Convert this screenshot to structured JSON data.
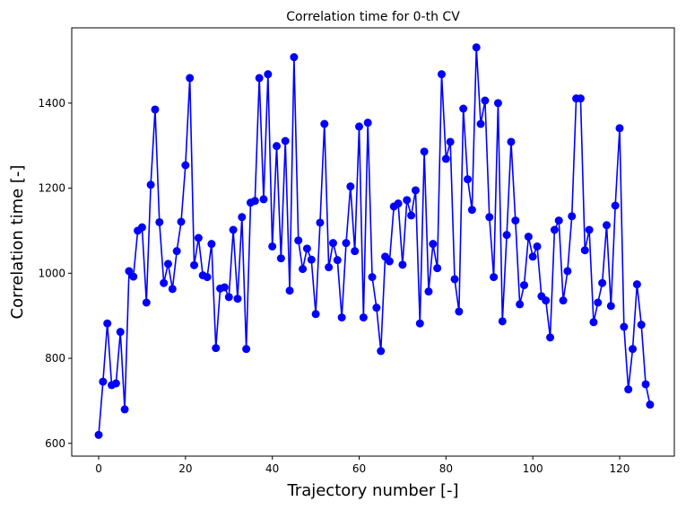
{
  "chart_data": {
    "type": "line",
    "title": "Correlation time for 0-th CV",
    "xlabel": "Trajectory number [-]",
    "ylabel": "Correlation time [-]",
    "xlim": [
      -6.2,
      132.6
    ],
    "ylim": [
      570,
      1577
    ],
    "xticks": [
      0,
      20,
      40,
      60,
      80,
      100,
      120
    ],
    "yticks": [
      600,
      800,
      1000,
      1200,
      1400
    ],
    "grid": false,
    "color": "#0000ff",
    "marker": "circle",
    "x": [
      0,
      1,
      2,
      3,
      4,
      5,
      6,
      7,
      8,
      9,
      10,
      11,
      12,
      13,
      14,
      15,
      16,
      17,
      18,
      19,
      20,
      21,
      22,
      23,
      24,
      25,
      26,
      27,
      28,
      29,
      30,
      31,
      32,
      33,
      34,
      35,
      36,
      37,
      38,
      39,
      40,
      41,
      42,
      43,
      44,
      45,
      46,
      47,
      48,
      49,
      50,
      51,
      52,
      53,
      54,
      55,
      56,
      57,
      58,
      59,
      60,
      61,
      62,
      63,
      64,
      65,
      66,
      67,
      68,
      69,
      70,
      71,
      72,
      73,
      74,
      75,
      76,
      77,
      78,
      79,
      80,
      81,
      82,
      83,
      84,
      85,
      86,
      87,
      88,
      89,
      90,
      91,
      92,
      93,
      94,
      95,
      96,
      97,
      98,
      99,
      100,
      101,
      102,
      103,
      104,
      105,
      106,
      107,
      108,
      109,
      110,
      111,
      112,
      113,
      114,
      115,
      116,
      117,
      118,
      119,
      120,
      121,
      122,
      123,
      124,
      125,
      126,
      127
    ],
    "y": [
      620,
      745,
      882,
      737,
      741,
      862,
      680,
      1005,
      992,
      1100,
      1108,
      931,
      1208,
      1385,
      1120,
      977,
      1022,
      963,
      1052,
      1121,
      1254,
      1459,
      1019,
      1083,
      995,
      991,
      1069,
      824,
      964,
      967,
      944,
      1102,
      940,
      1132,
      822,
      1166,
      1170,
      1459,
      1174,
      1468,
      1063,
      1299,
      1035,
      1311,
      959,
      1508,
      1077,
      1010,
      1058,
      1032,
      904,
      1119,
      1351,
      1014,
      1071,
      1031,
      896,
      1071,
      1204,
      1052,
      1345,
      896,
      1354,
      991,
      919,
      817,
      1039,
      1028,
      1157,
      1164,
      1020,
      1172,
      1136,
      1195,
      882,
      1286,
      957,
      1069,
      1012,
      1468,
      1269,
      1309,
      986,
      910,
      1387,
      1221,
      1149,
      1531,
      1351,
      1406,
      1132,
      991,
      1400,
      887,
      1090,
      1309,
      1124,
      927,
      972,
      1086,
      1039,
      1063,
      946,
      936,
      849,
      1102,
      1124,
      936,
      1005,
      1134,
      1411,
      1411,
      1054,
      1102,
      885,
      931,
      977,
      1113,
      923,
      1159,
      1341,
      874,
      727,
      822,
      974,
      879,
      739,
      691
    ]
  }
}
